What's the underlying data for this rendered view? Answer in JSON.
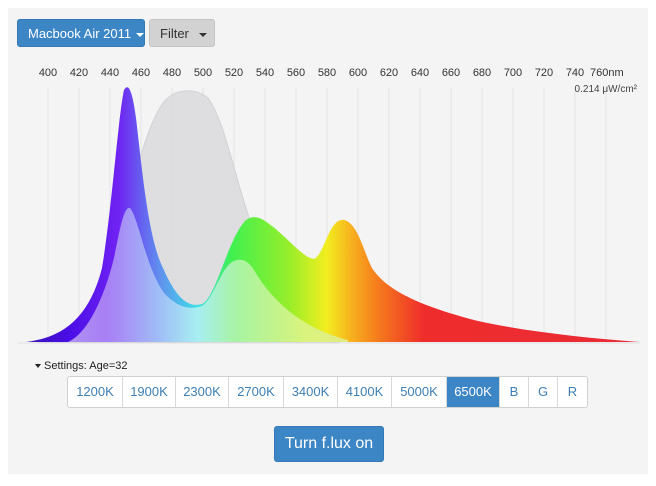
{
  "toolbar": {
    "device_label": "Macbook Air 2011",
    "filter_label": "Filter"
  },
  "spectrum": {
    "wavelength_ticks": [
      "400",
      "420",
      "440",
      "460",
      "480",
      "500",
      "520",
      "540",
      "560",
      "580",
      "600",
      "620",
      "640",
      "660",
      "680",
      "700",
      "720",
      "740",
      "760nm"
    ],
    "unit_label": "0.214 μW/cm²"
  },
  "settings": {
    "label": "Settings: Age=32"
  },
  "temperature_buttons": [
    {
      "label": "1200K",
      "active": false
    },
    {
      "label": "1900K",
      "active": false
    },
    {
      "label": "2300K",
      "active": false
    },
    {
      "label": "2700K",
      "active": false
    },
    {
      "label": "3400K",
      "active": false
    },
    {
      "label": "4100K",
      "active": false
    },
    {
      "label": "5000K",
      "active": false
    },
    {
      "label": "6500K",
      "active": true
    },
    {
      "label": "B",
      "active": false
    },
    {
      "label": "G",
      "active": false
    },
    {
      "label": "R",
      "active": false
    }
  ],
  "primary_button": {
    "label": "Turn f.lux on"
  },
  "colors": {
    "accent": "#3d86c6",
    "panel_bg": "#f4f4f5"
  }
}
